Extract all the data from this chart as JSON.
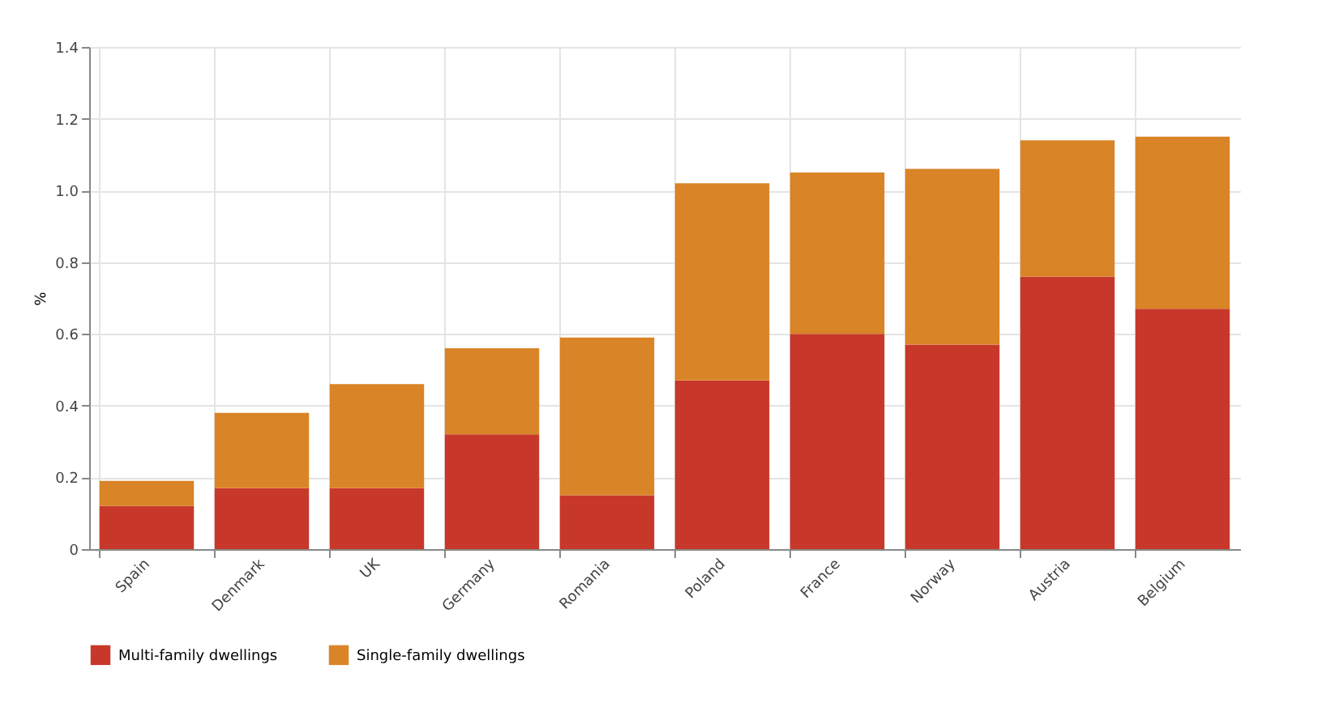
{
  "chart_data": {
    "type": "bar",
    "stacked": true,
    "ylabel": "%",
    "categories": [
      "Spain",
      "Denmark",
      "UK",
      "Germany",
      "Romania",
      "Poland",
      "France",
      "Norway",
      "Austria",
      "Belgium"
    ],
    "series": [
      {
        "name": "Multi-family dwellings",
        "color": "#c8382a",
        "values": [
          0.12,
          0.17,
          0.17,
          0.32,
          0.15,
          0.47,
          0.6,
          0.57,
          0.76,
          0.67
        ]
      },
      {
        "name": "Single-family dwellings",
        "color": "#d98427",
        "values": [
          0.07,
          0.21,
          0.29,
          0.24,
          0.44,
          0.55,
          0.45,
          0.49,
          0.38,
          0.48
        ]
      }
    ],
    "ylim": [
      0,
      1.4
    ],
    "yticks": [
      0,
      0.2,
      0.4,
      0.6,
      0.8,
      {
        "value": 1,
        "label": "1.0"
      },
      1.2,
      1.4
    ],
    "grid": true,
    "legend": "bottom left"
  }
}
